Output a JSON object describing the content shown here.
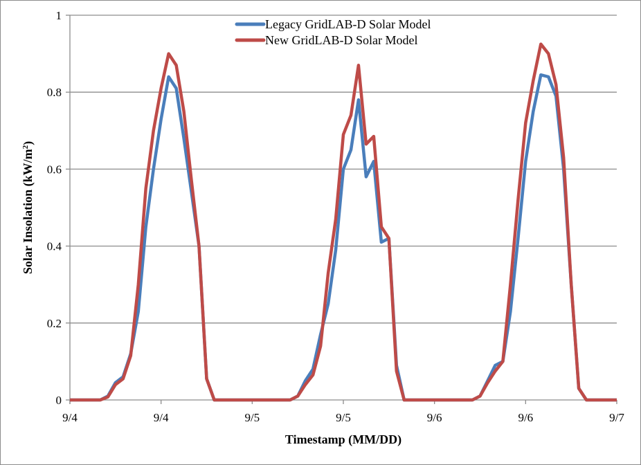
{
  "chart_data": {
    "type": "line",
    "title": "",
    "xlabel": "Timestamp (MM/DD)",
    "ylabel": "Solar Insolation (kW/m²)",
    "ylabel_base": "Solar Insolation (kW/m",
    "ylabel_sup": "2",
    "ylabel_tail": ")",
    "ylim": [
      0,
      1
    ],
    "xlim_hours": [
      0,
      72
    ],
    "yticks": [
      "0",
      "0.2",
      "0.4",
      "0.6",
      "0.8",
      "1"
    ],
    "xticks": [
      "9/4",
      "9/4",
      "9/5",
      "9/5",
      "9/6",
      "9/6",
      "9/7"
    ],
    "xtick_hours": [
      0,
      12,
      24,
      36,
      48,
      60,
      72
    ],
    "grid": "horizontal",
    "legend_position": "top-center",
    "x_unit": "hours since 9/4 00:00",
    "x": [
      0,
      1,
      2,
      3,
      4,
      5,
      6,
      7,
      8,
      9,
      10,
      11,
      12,
      13,
      14,
      15,
      16,
      17,
      18,
      19,
      20,
      21,
      22,
      23,
      24,
      25,
      26,
      27,
      28,
      29,
      30,
      31,
      32,
      33,
      34,
      35,
      36,
      37,
      38,
      39,
      40,
      41,
      42,
      43,
      44,
      45,
      46,
      47,
      48,
      49,
      50,
      51,
      52,
      53,
      54,
      55,
      56,
      57,
      58,
      59,
      60,
      61,
      62,
      63,
      64,
      65,
      66,
      67,
      68,
      69,
      70,
      71,
      72
    ],
    "series": [
      {
        "name": "Legacy GridLAB-D Solar Model",
        "color": "#4a7ebb",
        "values": [
          0,
          0,
          0,
          0,
          0,
          0.01,
          0.045,
          0.06,
          0.12,
          0.23,
          0.45,
          0.6,
          0.73,
          0.84,
          0.81,
          0.68,
          0.54,
          0.4,
          0.055,
          0,
          0,
          0,
          0,
          0,
          0,
          0,
          0,
          0,
          0,
          0,
          0.01,
          0.05,
          0.08,
          0.17,
          0.25,
          0.39,
          0.6,
          0.65,
          0.78,
          0.58,
          0.62,
          0.41,
          0.42,
          0.09,
          0,
          0,
          0,
          0,
          0,
          0,
          0,
          0,
          0,
          0,
          0.01,
          0.05,
          0.09,
          0.1,
          0.23,
          0.42,
          0.62,
          0.75,
          0.845,
          0.84,
          0.79,
          0.6,
          0.3,
          0.03,
          0,
          0,
          0,
          0,
          0
        ],
        "peaks": [
          0.84,
          0.78,
          0.845
        ]
      },
      {
        "name": "New GridLAB-D Solar Model",
        "color": "#be4b48",
        "values": [
          0,
          0,
          0,
          0,
          0,
          0.008,
          0.04,
          0.055,
          0.115,
          0.3,
          0.55,
          0.7,
          0.81,
          0.9,
          0.87,
          0.75,
          0.57,
          0.4,
          0.055,
          0,
          0,
          0,
          0,
          0,
          0,
          0,
          0,
          0,
          0,
          0,
          0.01,
          0.04,
          0.065,
          0.14,
          0.33,
          0.47,
          0.69,
          0.74,
          0.87,
          0.665,
          0.685,
          0.45,
          0.42,
          0.075,
          0,
          0,
          0,
          0,
          0,
          0,
          0,
          0,
          0,
          0,
          0.01,
          0.045,
          0.075,
          0.1,
          0.3,
          0.52,
          0.72,
          0.83,
          0.925,
          0.9,
          0.82,
          0.63,
          0.3,
          0.03,
          0,
          0,
          0,
          0,
          0
        ],
        "peaks": [
          0.9,
          0.87,
          0.925
        ]
      }
    ]
  },
  "legend": {
    "items": [
      {
        "label": "Legacy GridLAB-D Solar Model",
        "color": "#4a7ebb"
      },
      {
        "label": "New GridLAB-D Solar Model",
        "color": "#be4b48"
      }
    ]
  },
  "axes": {
    "x_title": "Timestamp (MM/DD)",
    "y_title_base": "Solar Insolation (kW/m",
    "y_title_sup": "2",
    "y_title_tail": ")"
  },
  "style": {
    "grid_color": "#8c8c8c",
    "axis_color": "#8c8c8c"
  }
}
